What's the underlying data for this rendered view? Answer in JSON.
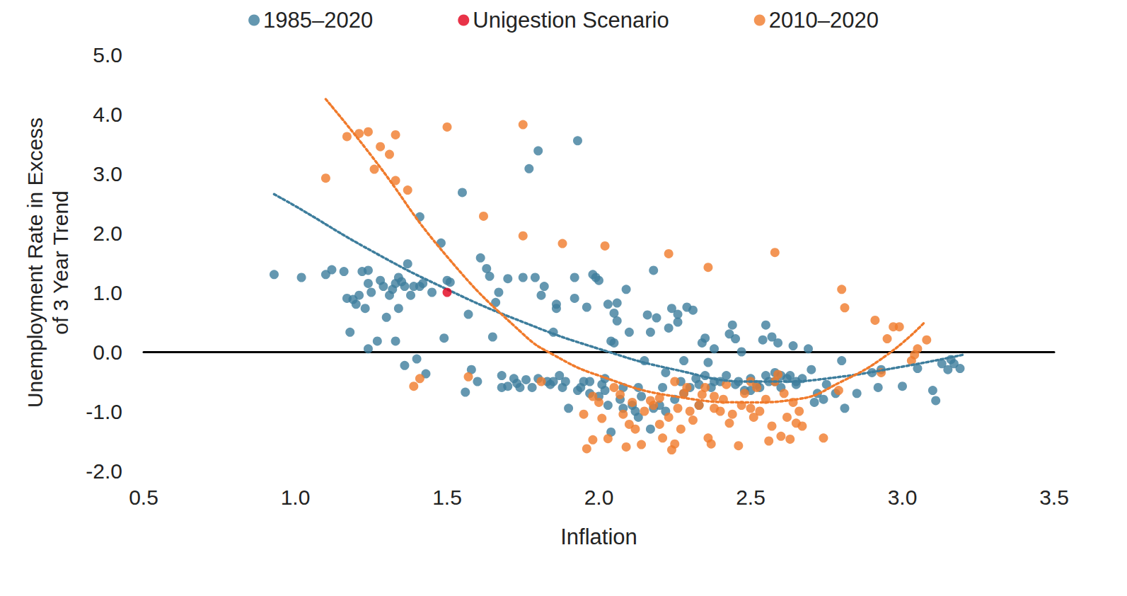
{
  "chart_data": {
    "type": "scatter",
    "x_label": "Inflation",
    "y_label": "Unemployment Rate in Excess\nof 3 Year Trend",
    "xlim": [
      0.5,
      3.5
    ],
    "xticks": [
      {
        "value": 0.5,
        "label": "0.5"
      },
      {
        "value": 1,
        "label": "1.0"
      },
      {
        "value": 1.5,
        "label": "1.5"
      },
      {
        "value": 2,
        "label": "2.0"
      },
      {
        "value": 2.5,
        "label": "2.5"
      },
      {
        "value": 3,
        "label": "3.0"
      },
      {
        "value": 3.5,
        "label": "3.5"
      }
    ],
    "ylim": [
      -2,
      5
    ],
    "yticks": [
      {
        "value": -2,
        "label": "-2.0"
      },
      {
        "value": -1,
        "label": "-1.0"
      },
      {
        "value": 0,
        "label": "0.0"
      },
      {
        "value": 1,
        "label": "1.0"
      },
      {
        "value": 2,
        "label": "2.0"
      },
      {
        "value": 3,
        "label": "3.0"
      },
      {
        "value": 4,
        "label": "4.0"
      },
      {
        "value": 5,
        "label": "5.0"
      }
    ],
    "grid": false,
    "legend": "top",
    "series": [
      {
        "name": "1985–2020",
        "type": "scatter",
        "marker": "circle",
        "color": "#3d7d9c",
        "x": [
          0.93,
          1.02,
          1.1,
          1.12,
          1.16,
          1.17,
          1.18,
          1.19,
          1.2,
          1.21,
          1.22,
          1.23,
          1.24,
          1.24,
          1.24,
          1.25,
          1.27,
          1.28,
          1.29,
          1.3,
          1.31,
          1.32,
          1.33,
          1.33,
          1.34,
          1.34,
          1.35,
          1.36,
          1.36,
          1.37,
          1.38,
          1.39,
          1.4,
          1.41,
          1.41,
          1.42,
          1.43,
          1.45,
          1.48,
          1.49,
          1.5,
          1.51,
          1.55,
          1.56,
          1.57,
          1.58,
          1.6,
          1.61,
          1.63,
          1.64,
          1.65,
          1.66,
          1.67,
          1.68,
          1.68,
          1.7,
          1.7,
          1.72,
          1.73,
          1.74,
          1.75,
          1.76,
          1.77,
          1.78,
          1.79,
          1.8,
          1.81,
          1.82,
          1.83,
          1.84,
          1.85,
          1.86,
          1.86,
          1.87,
          1.88,
          1.89,
          1.9,
          1.92,
          1.92,
          1.93,
          1.94,
          1.95,
          1.96,
          1.97,
          1.98,
          1.99,
          2.0,
          2.0,
          2.01,
          2.02,
          2.03,
          2.03,
          2.04,
          2.04,
          2.05,
          2.05,
          2.06,
          2.06,
          2.07,
          2.08,
          2.09,
          2.1,
          2.11,
          2.12,
          2.13,
          2.14,
          2.15,
          2.16,
          2.17,
          2.17,
          2.18,
          2.19,
          2.2,
          2.21,
          2.22,
          2.23,
          2.24,
          2.25,
          2.26,
          2.26,
          2.27,
          2.28,
          2.29,
          2.3,
          2.31,
          2.32,
          2.33,
          2.34,
          2.35,
          2.35,
          2.36,
          2.37,
          2.38,
          2.4,
          2.42,
          2.43,
          2.44,
          2.45,
          2.46,
          2.47,
          2.48,
          2.5,
          2.52,
          2.53,
          2.54,
          2.55,
          2.55,
          2.56,
          2.57,
          2.58,
          2.59,
          2.6,
          2.62,
          2.63,
          2.64,
          2.65,
          2.67,
          2.69,
          2.7,
          2.71,
          2.72,
          2.74,
          2.75,
          2.78,
          2.8,
          2.81,
          2.85,
          2.9,
          2.92,
          2.93,
          3.0,
          3.05,
          3.1,
          3.13,
          3.15,
          3.16,
          3.17,
          3.19,
          3.11,
          1.8,
          1.85,
          1.93,
          1.97,
          2.02,
          2.08,
          2.13,
          2.18,
          2.22,
          2.28,
          2.33,
          2.38,
          2.45,
          2.5,
          2.58,
          2.6,
          2.65
        ],
        "values": [
          1.3,
          1.25,
          1.3,
          1.38,
          1.35,
          0.9,
          0.33,
          0.88,
          0.8,
          0.95,
          1.35,
          0.73,
          1.15,
          1.37,
          0.05,
          1.0,
          0.18,
          1.2,
          1.1,
          0.58,
          0.95,
          1.05,
          0.18,
          1.15,
          1.25,
          0.73,
          1.18,
          1.1,
          -0.23,
          1.48,
          0.95,
          1.1,
          -0.12,
          1.1,
          2.27,
          1.15,
          -0.37,
          1.0,
          1.83,
          0.23,
          1.2,
          1.17,
          2.68,
          -0.68,
          0.63,
          -0.3,
          -0.5,
          1.58,
          1.4,
          1.27,
          0.25,
          0.83,
          1.0,
          -0.4,
          -0.6,
          1.23,
          -0.58,
          -0.45,
          -0.53,
          -0.6,
          1.25,
          -0.47,
          3.08,
          -0.6,
          1.25,
          3.38,
          0.95,
          1.1,
          -0.5,
          -0.55,
          0.33,
          0.8,
          0.73,
          -0.4,
          -0.6,
          -0.5,
          -0.95,
          1.25,
          0.9,
          3.55,
          -0.6,
          -0.5,
          0.75,
          -0.7,
          1.3,
          1.25,
          1.2,
          -0.75,
          -0.55,
          -0.65,
          -0.9,
          0.8,
          0.18,
          -1.35,
          0.15,
          0.65,
          0.52,
          0.82,
          -0.8,
          -0.6,
          1.05,
          0.33,
          -0.9,
          -1.0,
          -0.6,
          -0.75,
          -0.15,
          0.62,
          -1.3,
          0.33,
          1.37,
          0.57,
          -0.9,
          -0.6,
          -0.35,
          0.4,
          0.73,
          -0.8,
          0.63,
          0.5,
          -0.5,
          -0.15,
          0.75,
          -0.6,
          0.7,
          -0.45,
          -0.9,
          0.15,
          0.23,
          -0.4,
          -0.18,
          -0.6,
          0.05,
          -0.5,
          -0.4,
          0.3,
          0.45,
          0.22,
          -0.5,
          0.0,
          -0.65,
          -0.45,
          -0.55,
          -0.6,
          0.2,
          0.45,
          -0.4,
          -0.5,
          0.25,
          -0.35,
          0.15,
          -0.6,
          -0.45,
          -0.4,
          0.1,
          -0.5,
          -0.45,
          0.05,
          -0.3,
          -0.85,
          -0.7,
          -0.8,
          -0.55,
          -0.7,
          -0.15,
          -0.95,
          -0.7,
          -0.35,
          -0.6,
          -0.3,
          -0.58,
          -0.28,
          -0.65,
          -0.2,
          -0.3,
          -0.13,
          -0.2,
          -0.28,
          -0.82,
          -0.45,
          -0.5,
          -0.65,
          -0.5,
          -0.45,
          -0.95,
          -1.1,
          -0.95,
          -1.0,
          -0.7,
          -0.55,
          -0.5,
          -0.55,
          -0.65,
          -0.5,
          -0.4,
          -0.55
        ]
      },
      {
        "name": "Unigestion Scenario",
        "type": "scatter",
        "marker": "circle",
        "color": "#e2001a",
        "x": [
          1.5
        ],
        "values": [
          1.0
        ]
      },
      {
        "name": "2010–2020",
        "type": "scatter",
        "marker": "circle",
        "color": "#f07a2b",
        "x": [
          1.1,
          1.17,
          1.21,
          1.24,
          1.26,
          1.28,
          1.31,
          1.33,
          1.33,
          1.37,
          1.39,
          1.41,
          1.5,
          1.57,
          1.62,
          1.75,
          1.75,
          1.88,
          2.02,
          2.23,
          2.36,
          2.58,
          1.81,
          1.95,
          1.96,
          1.98,
          1.98,
          2.0,
          2.01,
          2.03,
          2.05,
          2.07,
          2.08,
          2.09,
          2.1,
          2.11,
          2.12,
          2.14,
          2.15,
          2.17,
          2.18,
          2.2,
          2.2,
          2.21,
          2.23,
          2.24,
          2.25,
          2.26,
          2.27,
          2.28,
          2.29,
          2.3,
          2.31,
          2.33,
          2.34,
          2.35,
          2.36,
          2.37,
          2.38,
          2.4,
          2.41,
          2.43,
          2.44,
          2.46,
          2.47,
          2.48,
          2.5,
          2.51,
          2.52,
          2.53,
          2.55,
          2.56,
          2.57,
          2.58,
          2.59,
          2.6,
          2.61,
          2.62,
          2.63,
          2.64,
          2.65,
          2.66,
          2.67,
          2.74,
          2.79,
          2.8,
          2.81,
          2.91,
          2.93,
          2.95,
          2.97,
          2.99,
          3.03,
          3.04,
          3.05,
          3.08,
          2.25,
          2.38,
          2.5,
          2.42
        ],
        "values": [
          2.92,
          3.62,
          3.67,
          3.7,
          3.07,
          3.45,
          3.32,
          3.65,
          2.88,
          2.72,
          -0.58,
          -0.45,
          3.78,
          -0.42,
          2.28,
          3.82,
          1.95,
          1.82,
          1.78,
          1.65,
          1.42,
          1.67,
          -0.5,
          -1.05,
          -1.63,
          -1.48,
          -0.75,
          -0.85,
          -1.12,
          -1.46,
          -0.6,
          -0.72,
          -1.05,
          -1.6,
          -1.22,
          -0.85,
          -1.3,
          -1.56,
          -1.0,
          -0.82,
          -0.9,
          -1.22,
          -0.78,
          -1.45,
          -1.1,
          -1.65,
          -1.55,
          -0.95,
          -1.3,
          -0.7,
          -0.6,
          -1.0,
          -1.15,
          -0.9,
          -0.72,
          -0.6,
          -1.45,
          -1.55,
          -0.75,
          -1.0,
          -0.8,
          -1.2,
          -1.05,
          -1.58,
          -0.9,
          -0.7,
          -0.95,
          -1.1,
          -0.6,
          -1.0,
          -0.8,
          -1.5,
          -1.25,
          -0.5,
          -0.38,
          -1.42,
          -0.7,
          -1.1,
          -1.47,
          -0.85,
          -1.2,
          -1.0,
          -1.25,
          -1.45,
          -0.65,
          1.05,
          0.74,
          0.53,
          -0.35,
          0.22,
          0.42,
          0.42,
          -0.15,
          -0.05,
          0.05,
          0.2,
          -0.5,
          -0.95,
          -0.5,
          -0.55
        ]
      },
      {
        "type": "line",
        "line_style": "dotted",
        "color": "#3d7d9c",
        "x": [
          0.93,
          1.0,
          1.25,
          1.5,
          1.75,
          2.0,
          2.25,
          2.5,
          2.6,
          2.75,
          3.0,
          3.2
        ],
        "values": [
          2.65,
          2.45,
          1.7,
          1.05,
          0.5,
          0.05,
          -0.3,
          -0.5,
          -0.5,
          -0.45,
          -0.25,
          -0.05
        ]
      },
      {
        "type": "line",
        "line_style": "dotted",
        "color": "#f07a2b",
        "x": [
          1.1,
          1.25,
          1.5,
          1.75,
          1.85,
          2.0,
          2.25,
          2.5,
          2.65,
          2.8,
          2.95,
          3.07
        ],
        "values": [
          4.25,
          3.3,
          1.6,
          0.3,
          -0.05,
          -0.4,
          -0.75,
          -0.85,
          -0.8,
          -0.5,
          -0.05,
          0.48
        ]
      }
    ]
  }
}
